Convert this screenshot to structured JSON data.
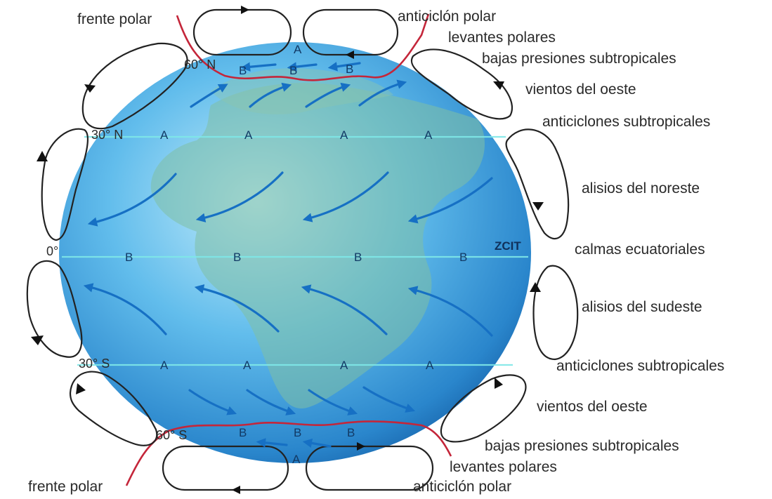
{
  "labels": {
    "frente_polar_top": "frente polar",
    "anticiclon_polar_top": "anticiclón polar",
    "levantes_polares_top": "levantes polares",
    "bajas_presiones_top": "bajas presiones subtropicales",
    "vientos_oeste_top": "vientos del oeste",
    "anticiclones_subtrop_top": "anticiclones subtropicales",
    "alisios_noreste": "alisios del noreste",
    "calmas_ecuatoriales": "calmas ecuatoriales",
    "alisios_sudeste": "alisios del sudeste",
    "anticiclones_subtrop_bottom": "anticiclones subtropicales",
    "vientos_oeste_bottom": "vientos del oeste",
    "bajas_presiones_bottom": "bajas presiones subtropicales",
    "levantes_polares_bottom": "levantes polares",
    "anticiclon_polar_bottom": "anticiclón polar",
    "frente_polar_bottom": "frente polar"
  },
  "latitudes": {
    "n60": "60° N",
    "n30": "30° N",
    "eq": "0°",
    "s30": "30° S",
    "s60": "60° S"
  },
  "zcit": "ZCIT",
  "pressure": {
    "high": "A",
    "low": "B"
  },
  "colors": {
    "ocean_light": "#b8e4f6",
    "ocean_mid": "#4fb0e6",
    "ocean_dark": "#1a6fb8",
    "land": "#6fb59a",
    "wind_arrow": "#1670c4",
    "polar_front": "#c4263a",
    "lat_line": "#7fe8e8"
  }
}
